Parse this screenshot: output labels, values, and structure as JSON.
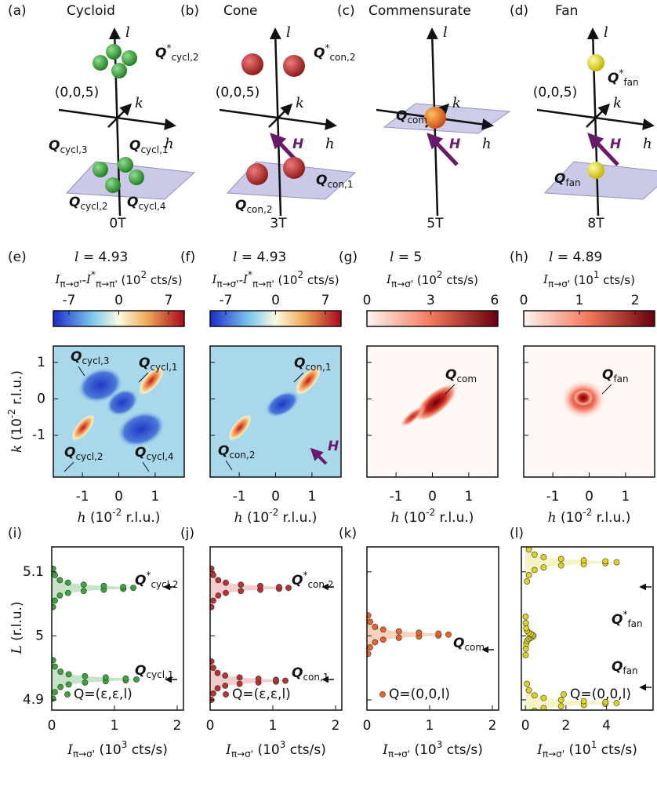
{
  "top_panels": [
    {
      "letter": "(a)",
      "title": "Cycloid",
      "field": "0T",
      "origin": "(0,0,5)",
      "axes": [
        "l",
        "k",
        "h"
      ],
      "labels": [
        [
          {
            "text": "Q",
            "style": "b"
          },
          {
            "text": "*",
            "style": "sup"
          },
          {
            "text": "cycl,2",
            "style": "sub"
          }
        ],
        [
          {
            "text": "Q",
            "style": "b"
          },
          {
            "text": "cycl,3",
            "style": "sub"
          }
        ],
        [
          {
            "text": "Q",
            "style": "b"
          },
          {
            "text": "cycl,1",
            "style": "sub"
          }
        ],
        [
          {
            "text": "Q",
            "style": "b"
          },
          {
            "text": "cycl,2",
            "style": "sub"
          }
        ],
        [
          {
            "text": "Q",
            "style": "b"
          },
          {
            "text": "cycl,4",
            "style": "sub"
          }
        ]
      ]
    },
    {
      "letter": "(b)",
      "title": "Cone",
      "field": "3T",
      "origin": "(0,0,5)",
      "axes": [
        "l",
        "k",
        "h"
      ],
      "field_arrow": "H",
      "labels": [
        [
          {
            "text": "Q",
            "style": "b"
          },
          {
            "text": "*",
            "style": "sup"
          },
          {
            "text": "con,2",
            "style": "sub"
          }
        ],
        [
          {
            "text": "Q",
            "style": "b"
          },
          {
            "text": "con,1",
            "style": "sub"
          }
        ],
        [
          {
            "text": "Q",
            "style": "b"
          },
          {
            "text": "con,2",
            "style": "sub"
          }
        ]
      ]
    },
    {
      "letter": "(c)",
      "title": "Commensurate",
      "field": "5T",
      "axes": [
        "l",
        "k",
        "h"
      ],
      "field_arrow": "H",
      "labels": [
        [
          {
            "text": "Q",
            "style": "b"
          },
          {
            "text": "com",
            "style": "sub"
          }
        ]
      ]
    },
    {
      "letter": "(d)",
      "title": "Fan",
      "field": "8T",
      "origin": "(0,0,5)",
      "axes": [
        "l",
        "k",
        "h"
      ],
      "field_arrow": "H",
      "labels": [
        [
          {
            "text": "Q",
            "style": "b"
          },
          {
            "text": "*",
            "style": "sup"
          },
          {
            "text": "fan",
            "style": "sub"
          }
        ],
        [
          {
            "text": "Q",
            "style": "b"
          },
          {
            "text": "fan",
            "style": "sub"
          }
        ]
      ]
    }
  ],
  "maps": [
    {
      "letter": "(e)",
      "title": [
        {
          "text": "l",
          "style": "i"
        },
        {
          "text": " = 4.93"
        }
      ],
      "cbar_label": [
        {
          "text": "I",
          "style": "i"
        },
        {
          "text": "π→σ'",
          "style": "sub"
        },
        {
          "text": "-"
        },
        {
          "text": "I",
          "style": "i"
        },
        {
          "text": "*",
          "style": "sup"
        },
        {
          "text": "π→π'",
          "style": "sub"
        },
        {
          "text": " (10"
        },
        {
          "text": "2",
          "style": "sup"
        },
        {
          "text": " cts/s)"
        }
      ],
      "cmap": "diverging",
      "cbar_lim": [
        -9.2,
        9.2
      ],
      "cbar_ticks": [
        -7,
        0,
        7
      ],
      "xlim": [
        -1.8,
        1.8
      ],
      "xticks": [
        -1,
        0,
        1
      ],
      "ylim": [
        -2.15,
        1.45
      ],
      "yticks": [
        1,
        0,
        -1
      ],
      "x_label": [
        {
          "text": "h",
          "style": "i"
        },
        {
          "text": " (10"
        },
        {
          "text": "-2",
          "style": "sup"
        },
        {
          "text": " r.l.u.)"
        }
      ],
      "y_label": [
        {
          "text": "k",
          "style": "i"
        },
        {
          "text": " (10"
        },
        {
          "text": "-2",
          "style": "sup"
        },
        {
          "text": " r.l.u.)"
        }
      ],
      "labels": [
        [
          {
            "text": "Q",
            "style": "b"
          },
          {
            "text": "cycl,1",
            "style": "sub"
          }
        ],
        [
          {
            "text": "Q",
            "style": "b"
          },
          {
            "text": "cycl,3",
            "style": "sub"
          }
        ],
        [
          {
            "text": "Q",
            "style": "b"
          },
          {
            "text": "cycl,2",
            "style": "sub"
          }
        ],
        [
          {
            "text": "Q",
            "style": "b"
          },
          {
            "text": "cycl,4",
            "style": "sub"
          }
        ]
      ]
    },
    {
      "letter": "(f)",
      "title": [
        {
          "text": "l",
          "style": "i"
        },
        {
          "text": " = 4.93"
        }
      ],
      "cbar_label": [
        {
          "text": "I",
          "style": "i"
        },
        {
          "text": "π→σ'",
          "style": "sub"
        },
        {
          "text": "-"
        },
        {
          "text": "I",
          "style": "i"
        },
        {
          "text": "*",
          "style": "sup"
        },
        {
          "text": "π→π'",
          "style": "sub"
        },
        {
          "text": " (10"
        },
        {
          "text": "2",
          "style": "sup"
        },
        {
          "text": " cts/s)"
        }
      ],
      "cmap": "diverging",
      "cbar_lim": [
        -9.2,
        9.2
      ],
      "cbar_ticks": [
        -7,
        0,
        7
      ],
      "xlim": [
        -1.8,
        1.8
      ],
      "xticks": [
        -1,
        0,
        1
      ],
      "ylim": [
        -2.15,
        1.45
      ],
      "yticks": [
        1,
        0,
        -1
      ],
      "x_label": [
        {
          "text": "h",
          "style": "i"
        },
        {
          "text": " (10"
        },
        {
          "text": "-2",
          "style": "sup"
        },
        {
          "text": " r.l.u.)"
        }
      ],
      "field_arrow": "H",
      "labels": [
        [
          {
            "text": "Q",
            "style": "b"
          },
          {
            "text": "con,1",
            "style": "sub"
          }
        ],
        [
          {
            "text": "Q",
            "style": "b"
          },
          {
            "text": "con,2",
            "style": "sub"
          }
        ]
      ]
    },
    {
      "letter": "(g)",
      "title": [
        {
          "text": "l",
          "style": "i"
        },
        {
          "text": " = 5"
        }
      ],
      "cbar_label": [
        {
          "text": "I",
          "style": "i"
        },
        {
          "text": "π→σ'",
          "style": "sub"
        },
        {
          "text": " (10"
        },
        {
          "text": "2",
          "style": "sup"
        },
        {
          "text": " cts/s)"
        }
      ],
      "cmap": "reds",
      "cbar_lim": [
        0,
        6.15
      ],
      "cbar_ticks": [
        0,
        3,
        6
      ],
      "xlim": [
        -1.8,
        1.8
      ],
      "xticks": [
        -1,
        0,
        1
      ],
      "ylim": [
        -2.15,
        1.45
      ],
      "yticks": [
        1,
        0,
        -1
      ],
      "x_label": [
        {
          "text": "h",
          "style": "i"
        },
        {
          "text": " (10"
        },
        {
          "text": "-2",
          "style": "sup"
        },
        {
          "text": " r.l.u.)"
        }
      ],
      "labels": [
        [
          {
            "text": "Q",
            "style": "b"
          },
          {
            "text": "com",
            "style": "sub"
          }
        ]
      ]
    },
    {
      "letter": "(h)",
      "title": [
        {
          "text": "l",
          "style": "i"
        },
        {
          "text": " = 4.89"
        }
      ],
      "cbar_label": [
        {
          "text": "I",
          "style": "i"
        },
        {
          "text": "π→σ'",
          "style": "sub"
        },
        {
          "text": " (10"
        },
        {
          "text": "1",
          "style": "sup"
        },
        {
          "text": " cts/s)"
        }
      ],
      "cmap": "reds",
      "cbar_lim": [
        0,
        2.35
      ],
      "cbar_ticks": [
        0,
        1,
        2
      ],
      "xlim": [
        -1.8,
        1.8
      ],
      "xticks": [
        -1,
        0,
        1
      ],
      "ylim": [
        -2.15,
        1.45
      ],
      "yticks": [
        1,
        0,
        -1
      ],
      "x_label": [
        {
          "text": "h",
          "style": "i"
        },
        {
          "text": " (10"
        },
        {
          "text": "-2",
          "style": "sup"
        },
        {
          "text": " r.l.u.)"
        }
      ],
      "labels": [
        [
          {
            "text": "Q",
            "style": "b"
          },
          {
            "text": "fan",
            "style": "sub"
          }
        ]
      ]
    }
  ],
  "chart_data": [
    {
      "type": "scatter",
      "letter": "(i)",
      "xlim": [
        0,
        2.1
      ],
      "xticks": [
        0,
        1,
        2
      ],
      "ylim": [
        4.884,
        5.139
      ],
      "yticks": [
        4.9,
        5,
        5.1
      ],
      "x_label": [
        {
          "text": "I",
          "style": "i"
        },
        {
          "text": "π→σ'",
          "style": "sub"
        },
        {
          "text": " (10"
        },
        {
          "text": "3",
          "style": "sup"
        },
        {
          "text": " cts/s)"
        }
      ],
      "y_label": [
        {
          "text": "L",
          "style": "i"
        },
        {
          "text": " (r.l.u.)"
        }
      ],
      "series": [
        {
          "name": "Q=(ε,ε,l)",
          "color": "#3aa53a",
          "fill": "#b9dcb9",
          "x": [
            0.02,
            0.05,
            0.13,
            0.26,
            0.51,
            0.83,
            1.14,
            1.3,
            1.14,
            0.83,
            0.51,
            0.26,
            0.13,
            0.05,
            0.02,
            null,
            0.02,
            0.05,
            0.14,
            0.27,
            0.53,
            0.86,
            1.18,
            1.35,
            1.18,
            0.86,
            0.53,
            0.27,
            0.14,
            0.05,
            0.02
          ],
          "values": [
            5.045,
            5.055,
            5.063,
            5.067,
            5.07,
            5.072,
            5.0735,
            5.075,
            5.0765,
            5.078,
            5.08,
            5.083,
            5.087,
            5.095,
            5.105,
            null,
            4.902,
            4.912,
            4.92,
            4.924,
            4.927,
            4.929,
            4.9305,
            4.932,
            4.9335,
            4.935,
            4.937,
            4.94,
            4.944,
            4.952,
            4.962
          ]
        }
      ],
      "annotations": [
        [
          {
            "text": "Q",
            "style": "b"
          },
          {
            "text": "*",
            "style": "sup"
          },
          {
            "text": "cycl,2",
            "style": "sub"
          }
        ],
        [
          {
            "text": "Q",
            "style": "b"
          },
          {
            "text": "cycl,1",
            "style": "sub"
          }
        ]
      ]
    },
    {
      "type": "scatter",
      "letter": "(j)",
      "xlim": [
        0,
        2.1
      ],
      "xticks": [
        0,
        1,
        2
      ],
      "ylim": [
        4.884,
        5.139
      ],
      "yticks": [
        4.9,
        5,
        5.1
      ],
      "x_label": [
        {
          "text": "I",
          "style": "i"
        },
        {
          "text": "π→σ'",
          "style": "sub"
        },
        {
          "text": " (10"
        },
        {
          "text": "3",
          "style": "sup"
        },
        {
          "text": " cts/s)"
        }
      ],
      "series": [
        {
          "name": "Q=(ε,ε,l)",
          "color": "#b83232",
          "fill": "#f0c0c0",
          "x": [
            0.02,
            0.05,
            0.13,
            0.25,
            0.49,
            0.8,
            1.1,
            1.25,
            1.1,
            0.8,
            0.49,
            0.25,
            0.13,
            0.05,
            0.02,
            null,
            0.02,
            0.05,
            0.12,
            0.24,
            0.47,
            0.77,
            1.05,
            1.2,
            1.05,
            0.77,
            0.47,
            0.24,
            0.12,
            0.05,
            0.02
          ],
          "values": [
            5.045,
            5.055,
            5.063,
            5.067,
            5.07,
            5.072,
            5.0735,
            5.075,
            5.0765,
            5.078,
            5.08,
            5.083,
            5.087,
            5.095,
            5.105,
            null,
            4.9,
            4.91,
            4.918,
            4.922,
            4.925,
            4.927,
            4.9285,
            4.93,
            4.9315,
            4.933,
            4.935,
            4.938,
            4.942,
            4.95,
            4.96
          ]
        }
      ],
      "annotations": [
        [
          {
            "text": "Q",
            "style": "b"
          },
          {
            "text": "*",
            "style": "sup"
          },
          {
            "text": "con,2",
            "style": "sub"
          }
        ],
        [
          {
            "text": "Q",
            "style": "b"
          },
          {
            "text": "con,1",
            "style": "sub"
          }
        ]
      ]
    },
    {
      "type": "scatter",
      "letter": "(k)",
      "xlim": [
        0,
        2.1
      ],
      "xticks": [
        0,
        1,
        2
      ],
      "ylim": [
        4.884,
        5.139
      ],
      "yticks": [
        4.9,
        5,
        5.1
      ],
      "x_label": [
        {
          "text": "I",
          "style": "i"
        },
        {
          "text": "π→σ'",
          "style": "sub"
        },
        {
          "text": " (10"
        },
        {
          "text": "3",
          "style": "sup"
        },
        {
          "text": " cts/s)"
        }
      ],
      "series": [
        {
          "name": "Q=(0,0,l)",
          "color": "#e8642a",
          "fill": "#f6c8a8",
          "x": [
            0.02,
            0.05,
            0.13,
            0.26,
            0.51,
            0.83,
            1.14,
            1.3,
            1.14,
            0.83,
            0.51,
            0.26,
            0.13,
            0.05,
            0.02
          ],
          "values": [
            4.972,
            4.982,
            4.99,
            4.994,
            4.997,
            4.999,
            5.0005,
            5.002,
            5.0035,
            5.005,
            5.007,
            5.01,
            5.014,
            5.022,
            5.032
          ]
        }
      ],
      "annotations": [
        [
          {
            "text": "Q",
            "style": "b"
          },
          {
            "text": "com",
            "style": "sub"
          }
        ]
      ]
    },
    {
      "type": "scatter",
      "letter": "(l)",
      "xlim": [
        -0.2,
        6.3
      ],
      "xticks": [
        0,
        2,
        4
      ],
      "ylim": [
        4.884,
        5.139
      ],
      "yticks": [
        4.9,
        5,
        5.1
      ],
      "x_label": [
        {
          "text": "I",
          "style": "i"
        },
        {
          "text": "π→σ'",
          "style": "sub"
        },
        {
          "text": " (10"
        },
        {
          "text": "1",
          "style": "sup"
        },
        {
          "text": " cts/s)"
        }
      ],
      "series": [
        {
          "name": "Q=(0,0,l)",
          "color": "#dcd420",
          "fill": "#f4f0b8",
          "x": [
            0.08,
            0.17,
            0.45,
            0.9,
            1.76,
            2.88,
            3.95,
            4.5,
            3.95,
            2.88,
            1.76,
            0.9,
            0.45,
            0.17,
            0.08,
            null,
            0.01,
            0.02,
            0.04,
            0.08,
            0.16,
            0.26,
            0.35,
            0.4,
            0.35,
            0.26,
            0.16,
            0.08,
            0.04,
            0.02,
            0.01,
            null,
            0.08,
            0.17,
            0.45,
            0.9,
            1.76,
            2.88,
            3.95,
            4.5,
            3.95,
            2.88,
            1.76,
            0.9,
            0.45,
            0.17,
            0.08
          ],
          "values": [
            5.085,
            5.095,
            5.103,
            5.107,
            5.11,
            5.112,
            5.1135,
            5.115,
            5.1165,
            5.118,
            5.12,
            5.123,
            5.127,
            5.135,
            5.145,
            null,
            4.97,
            4.98,
            4.988,
            4.992,
            4.995,
            4.997,
            4.9985,
            5,
            5.0015,
            5.003,
            5.005,
            5.008,
            5.012,
            5.02,
            5.03,
            null,
            4.865,
            4.875,
            4.883,
            4.887,
            4.89,
            4.892,
            4.8935,
            4.895,
            4.8965,
            4.898,
            4.9,
            4.903,
            4.907,
            4.915,
            4.925
          ]
        }
      ],
      "annotations": [
        [
          {
            "text": "Q",
            "style": "b"
          },
          {
            "text": "*",
            "style": "sup"
          },
          {
            "text": "fan",
            "style": "sub"
          }
        ],
        [
          {
            "text": "Q",
            "style": "b"
          },
          {
            "text": "fan",
            "style": "sub"
          }
        ]
      ]
    }
  ]
}
